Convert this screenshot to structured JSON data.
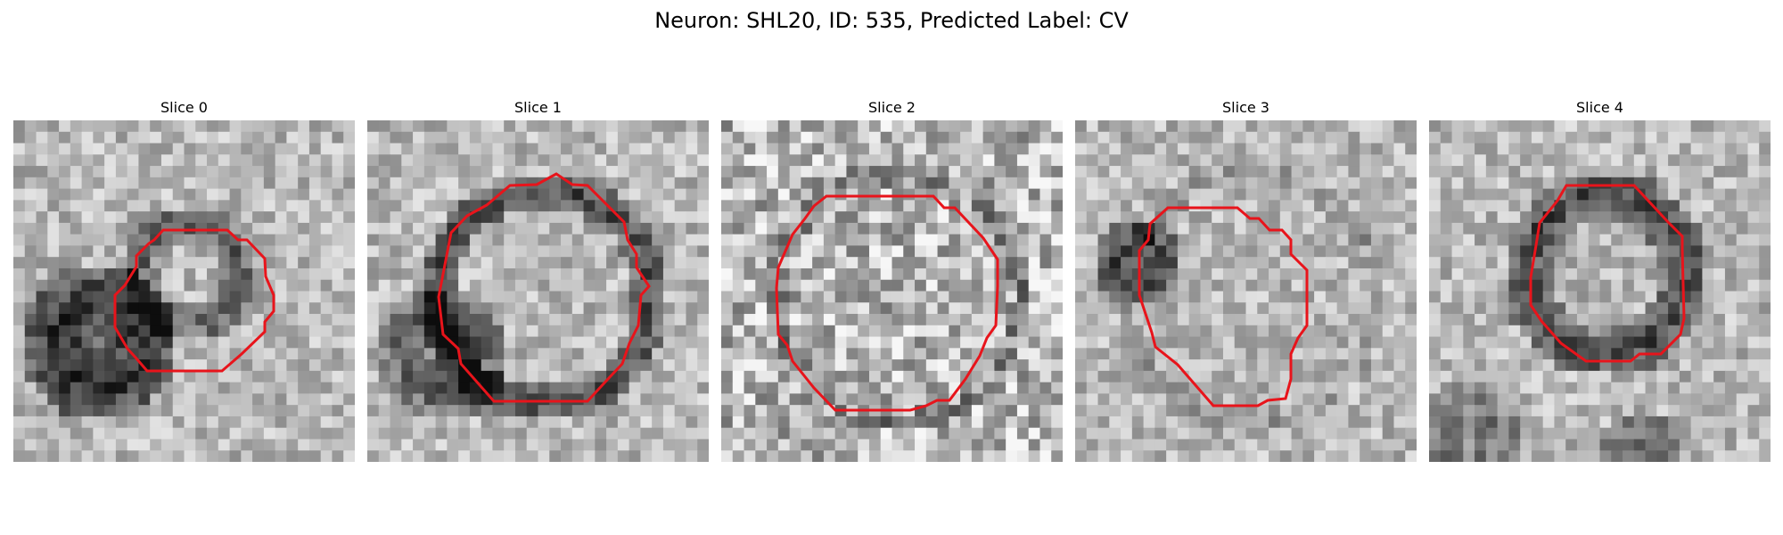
{
  "figure": {
    "title": "Neuron: SHL20, ID: 535, Predicted Label: CV"
  },
  "panels": [
    {
      "title": "Slice 0"
    },
    {
      "title": "Slice 1"
    },
    {
      "title": "Slice 2"
    },
    {
      "title": "Slice 3"
    },
    {
      "title": "Slice 4"
    }
  ],
  "colors": {
    "contour": "#e8141b",
    "colormap": "gray"
  }
}
